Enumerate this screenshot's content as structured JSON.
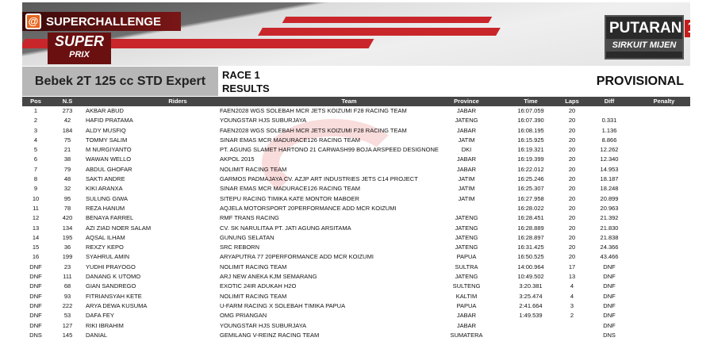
{
  "banner": {
    "brand": "SUPERCHALLENGE",
    "logo_main": "SUPER",
    "logo_sub": "PRIX",
    "round_label": "PUTARAN",
    "round_number": "1",
    "circuit": "SIRKUIT MIJEN"
  },
  "category": "Bebek 2T 125 cc STD Expert",
  "race": "RACE 1",
  "subtitle": "RESULTS",
  "status": "PROVISIONAL",
  "columns": [
    "Pos",
    "N.S",
    "Riders",
    "Team",
    "Province",
    "Time",
    "Laps",
    "Diff",
    "Penalty"
  ],
  "rows": [
    [
      "1",
      "273",
      "AKBAR ABUD",
      "FAEN2028 WGS SOLEBAH MCR JETS KOIZUMI F28 RACING TEAM",
      "JABAR",
      "16:07.059",
      "20",
      "",
      ""
    ],
    [
      "2",
      "42",
      "HAFID PRATAMA",
      "YOUNGSTAR HJS SUBURJAYA",
      "JATENG",
      "16:07.390",
      "20",
      "0.331",
      ""
    ],
    [
      "3",
      "184",
      "ALDY MUSFIQ",
      "FAEN2028 WGS SOLEBAH MCR JETS KOIZUMI F28 RACING TEAM",
      "JABAR",
      "16:08.195",
      "20",
      "1.136",
      ""
    ],
    [
      "4",
      "75",
      "TOMMY SALIM",
      "SINAR EMAS MCR MADURACE126 RACING TEAM",
      "JATIM",
      "16:15.925",
      "20",
      "8.866",
      ""
    ],
    [
      "5",
      "21",
      "M NURGIYANTO",
      "PT. AGUNG SLAMET HARTONO 21 CARWASH99 BOJA ARSPEED DESIGNONE",
      "DKI",
      "16:19.321",
      "20",
      "12.262",
      ""
    ],
    [
      "6",
      "38",
      "WAWAN WELLO",
      "AKPOL 2015",
      "JABAR",
      "16:19.399",
      "20",
      "12.340",
      ""
    ],
    [
      "7",
      "79",
      "ABDUL GHOFAR",
      "NOLIMIT RACING TEAM",
      "JABAR",
      "16:22.012",
      "20",
      "14.953",
      ""
    ],
    [
      "8",
      "48",
      "SAKTI ANDRE",
      "GARMOS PADMAJAYA CV. AZJP ART INDUSTRIES JETS C14 PROJECT",
      "JATIM",
      "16:25.246",
      "20",
      "18.187",
      ""
    ],
    [
      "9",
      "32",
      "KIKI ARANXA",
      "SINAR EMAS MCR MADURACE126 RACING TEAM",
      "JATIM",
      "16:25.307",
      "20",
      "18.248",
      ""
    ],
    [
      "10",
      "95",
      "SULUNG GIWA",
      "SITEPU RACING TIMIKA KATE MONTOR MABOER",
      "JATIM",
      "16:27.958",
      "20",
      "20.899",
      ""
    ],
    [
      "11",
      "78",
      "REZA HANUM",
      "AQJELA MOTORSPORT 20PERFORMANCE ADD MCR KOIZUMI",
      "",
      "16:28.022",
      "20",
      "20.963",
      ""
    ],
    [
      "12",
      "420",
      "BENAYA FARREL",
      "RMF TRANS RACING",
      "JATENG",
      "16:28.451",
      "20",
      "21.392",
      ""
    ],
    [
      "13",
      "134",
      "AZI ZIAD NOER SALAM",
      "CV. SK NARULITAA PT. JATI AGUNG ARSITAMA",
      "JATENG",
      "16:28.889",
      "20",
      "21.830",
      ""
    ],
    [
      "14",
      "195",
      "AQSAL ILHAM",
      "GUNUNG SELATAN",
      "JATENG",
      "16:28.897",
      "20",
      "21.838",
      ""
    ],
    [
      "15",
      "36",
      "REXZY KEPO",
      "SRC REBORN",
      "JATENG",
      "16:31.425",
      "20",
      "24.366",
      ""
    ],
    [
      "16",
      "199",
      "SYAHRUL AMIN",
      "ARYAPUTRA 77 20PERFORMANCE ADD MCR KOIZUMI",
      "PAPUA",
      "16:50.525",
      "20",
      "43.466",
      ""
    ],
    [
      "DNF",
      "23",
      "YUDHI PRAYOGO",
      "NOLIMIT RACING TEAM",
      "SULTRA",
      "14:00.964",
      "17",
      "DNF",
      ""
    ],
    [
      "DNF",
      "111",
      "DANANG K UTOMO",
      "ARJ NEW ANEKA KJM SEMARANG",
      "JATENG",
      "10:49.502",
      "13",
      "DNF",
      ""
    ],
    [
      "DNF",
      "68",
      "GIAN SANDREGO",
      "EXOTIC 24IR ADUKAH H2O",
      "SULTENG",
      "3:20.381",
      "4",
      "DNF",
      ""
    ],
    [
      "DNF",
      "93",
      "FITRIANSYAH KETE",
      "NOLIMIT RACING TEAM",
      "KALTIM",
      "3:25.474",
      "4",
      "DNF",
      ""
    ],
    [
      "DNF",
      "222",
      "ARYA DEWA KUSUMA",
      "U-FARM RACING X SOLEBAH TIMIKA PAPUA",
      "PAPUA",
      "2:41.664",
      "3",
      "DNF",
      ""
    ],
    [
      "DNF",
      "53",
      "DAFA FEY",
      "OMG PRIANGAN",
      "JABAR",
      "1:49.539",
      "2",
      "DNF",
      ""
    ],
    [
      "DNF",
      "127",
      "RIKI IBRAHIM",
      "YOUNGSTAR HJS SUBURJAYA",
      "JABAR",
      "",
      "",
      "DNF",
      ""
    ],
    [
      "DNS",
      "145",
      "DANIAL",
      "GEMILANG V-REINZ RACING TEAM",
      "SUMATERA",
      "",
      "",
      "DNS",
      ""
    ]
  ],
  "colors": {
    "header_bg": "#464646",
    "category_bg": "#b7b7b7",
    "accent": "#c9262b"
  }
}
